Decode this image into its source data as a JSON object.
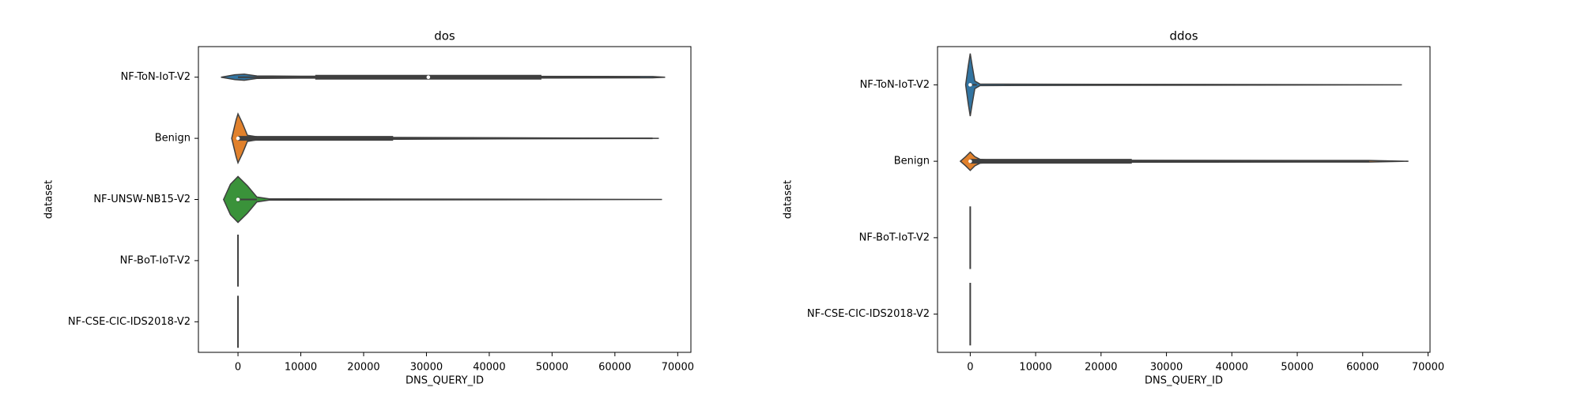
{
  "chart_data": [
    {
      "type": "violin",
      "title": "dos",
      "x_label": "DNS_QUERY_ID",
      "y_label": "dataset",
      "categories": [
        "NF-ToN-IoT-V2",
        "Benign",
        "NF-UNSW-NB15-V2",
        "NF-BoT-IoT-V2",
        "NF-CSE-CIC-IDS2018-V2"
      ],
      "xlim": [
        -6300,
        72100
      ],
      "xticks": [
        0,
        10000,
        20000,
        30000,
        40000,
        50000,
        60000,
        70000
      ],
      "violins": [
        {
          "color": "#3274a1",
          "density_x": [
            -2700,
            -500,
            1000,
            3000,
            10000,
            40000,
            66000,
            68000
          ],
          "density": [
            0,
            0.08,
            0.1,
            0.04,
            0.03,
            0.03,
            0.02,
            0
          ],
          "whisker_low": 0,
          "q1": 12300,
          "median": 30300,
          "q3": 48300,
          "whisker_high": 64000
        },
        {
          "color": "#e1812c",
          "density_x": [
            -1000,
            -300,
            0,
            700,
            1500,
            3000,
            24000,
            67000
          ],
          "density": [
            0,
            0.6,
            0.8,
            0.5,
            0.1,
            0.05,
            0.03,
            0
          ],
          "whisker_low": 0,
          "q1": 0,
          "median": 0,
          "q3": 24700,
          "whisker_high": 66000
        },
        {
          "color": "#3a923a",
          "density_x": [
            -2300,
            -1200,
            0,
            1500,
            3000,
            5000,
            67500
          ],
          "density": [
            0,
            0.5,
            0.75,
            0.45,
            0.08,
            0.02,
            0
          ],
          "whisker_low": -100,
          "q1": -100,
          "median": 0,
          "q3": 200,
          "whisker_high": 3000
        },
        {
          "color": "#c03d3e",
          "density_x": [
            0
          ],
          "density": [
            0.85
          ]
        },
        {
          "color": "#9372b2",
          "density_x": [
            0
          ],
          "density": [
            0.85
          ]
        }
      ]
    },
    {
      "type": "violin",
      "title": "ddos",
      "x_label": "DNS_QUERY_ID",
      "y_label": "dataset",
      "categories": [
        "NF-ToN-IoT-V2",
        "Benign",
        "NF-BoT-IoT-V2",
        "NF-CSE-CIC-IDS2018-V2"
      ],
      "xlim": [
        -5000,
        70300
      ],
      "xticks": [
        0,
        10000,
        20000,
        30000,
        40000,
        50000,
        60000,
        70000
      ],
      "violins": [
        {
          "color": "#3274a1",
          "density_x": [
            -700,
            -300,
            0,
            300,
            700,
            1500,
            66000
          ],
          "density": [
            0,
            0.5,
            0.82,
            0.5,
            0.1,
            0.02,
            0
          ],
          "whisker_low": 0,
          "q1": 0,
          "median": 0,
          "q3": 100,
          "whisker_high": 1000
        },
        {
          "color": "#e1812c",
          "density_x": [
            -1500,
            -700,
            0,
            700,
            1500,
            3000,
            61000,
            67000
          ],
          "density": [
            0,
            0.12,
            0.24,
            0.12,
            0.05,
            0.03,
            0.02,
            0
          ],
          "whisker_low": 0,
          "q1": 0,
          "median": 0,
          "q3": 24700,
          "whisker_high": 61000
        },
        {
          "color": "#3a923a",
          "density_x": [
            0
          ],
          "density": [
            0.82
          ]
        },
        {
          "color": "#c03d3e",
          "density_x": [
            0
          ],
          "density": [
            0.82
          ]
        }
      ]
    }
  ]
}
